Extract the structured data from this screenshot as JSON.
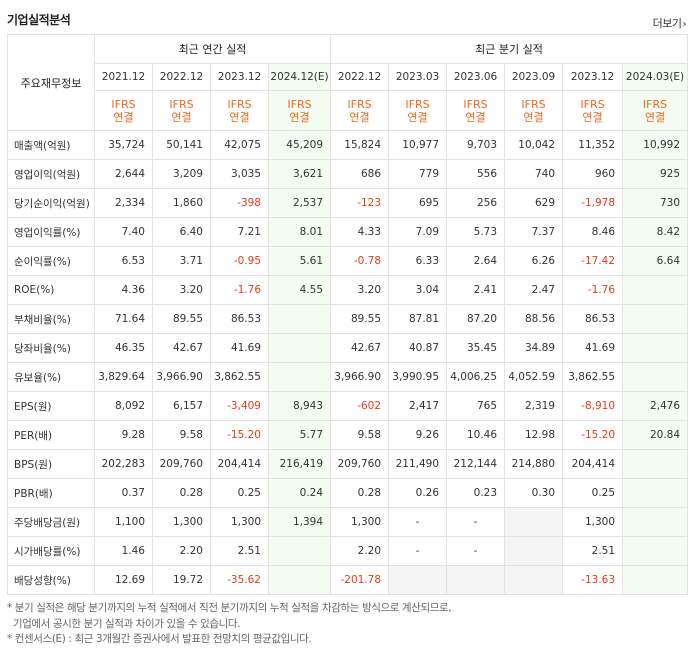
{
  "header": {
    "title": "기업실적분석",
    "more_label": "더보기",
    "more_chevron": "›"
  },
  "table": {
    "label_head": "주요재무정보",
    "group_annual": "최근 연간 실적",
    "group_quarter": "최근 분기 실적",
    "periods": [
      "2021.12",
      "2022.12",
      "2023.12",
      "2024.12(E)",
      "2022.12",
      "2023.03",
      "2023.06",
      "2023.09",
      "2023.12",
      "2024.03(E)"
    ],
    "ifrs_line1": "IFRS",
    "ifrs_line2": "연결",
    "rows": [
      {
        "label": "매출액(억원)",
        "values": [
          "35,724",
          "50,141",
          "42,075",
          "45,209",
          "15,824",
          "10,977",
          "9,703",
          "10,042",
          "11,352",
          "10,992"
        ]
      },
      {
        "label": "영업이익(억원)",
        "values": [
          "2,644",
          "3,209",
          "3,035",
          "3,621",
          "686",
          "779",
          "556",
          "740",
          "960",
          "925"
        ]
      },
      {
        "label": "당기순이익(억원)",
        "values": [
          "2,334",
          "1,860",
          "-398",
          "2,537",
          "-123",
          "695",
          "256",
          "629",
          "-1,978",
          "730"
        ]
      },
      {
        "label": "영업이익률(%)",
        "values": [
          "7.40",
          "6.40",
          "7.21",
          "8.01",
          "4.33",
          "7.09",
          "5.73",
          "7.37",
          "8.46",
          "8.42"
        ]
      },
      {
        "label": "순이익률(%)",
        "values": [
          "6.53",
          "3.71",
          "-0.95",
          "5.61",
          "-0.78",
          "6.33",
          "2.64",
          "6.26",
          "-17.42",
          "6.64"
        ]
      },
      {
        "label": "ROE(%)",
        "values": [
          "4.36",
          "3.20",
          "-1.76",
          "4.55",
          "3.20",
          "3.04",
          "2.41",
          "2.47",
          "-1.76",
          ""
        ]
      },
      {
        "label": "부채비율(%)",
        "values": [
          "71.64",
          "89.55",
          "86.53",
          "",
          "89.55",
          "87.81",
          "87.20",
          "88.56",
          "86.53",
          ""
        ]
      },
      {
        "label": "당좌비율(%)",
        "values": [
          "46.35",
          "42.67",
          "41.69",
          "",
          "42.67",
          "40.87",
          "35.45",
          "34.89",
          "41.69",
          ""
        ]
      },
      {
        "label": "유보율(%)",
        "values": [
          "3,829.64",
          "3,966.90",
          "3,862.55",
          "",
          "3,966.90",
          "3,990.95",
          "4,006.25",
          "4,052.59",
          "3,862.55",
          ""
        ]
      },
      {
        "label": "EPS(원)",
        "values": [
          "8,092",
          "6,157",
          "-3,409",
          "8,943",
          "-602",
          "2,417",
          "765",
          "2,319",
          "-8,910",
          "2,476"
        ]
      },
      {
        "label": "PER(배)",
        "values": [
          "9.28",
          "9.58",
          "-15.20",
          "5.77",
          "9.58",
          "9.26",
          "10.46",
          "12.98",
          "-15.20",
          "20.84"
        ]
      },
      {
        "label": "BPS(원)",
        "values": [
          "202,283",
          "209,760",
          "204,414",
          "216,419",
          "209,760",
          "211,490",
          "212,144",
          "214,880",
          "204,414",
          ""
        ]
      },
      {
        "label": "PBR(배)",
        "values": [
          "0.37",
          "0.28",
          "0.25",
          "0.24",
          "0.28",
          "0.26",
          "0.23",
          "0.30",
          "0.25",
          ""
        ]
      },
      {
        "label": "주당배당금(원)",
        "values": [
          "1,100",
          "1,300",
          "1,300",
          "1,394",
          "1,300",
          "-",
          "-",
          "",
          "1,300",
          ""
        ]
      },
      {
        "label": "시가배당률(%)",
        "values": [
          "1.46",
          "2.20",
          "2.51",
          "",
          "2.20",
          "-",
          "-",
          "",
          "2.51",
          ""
        ]
      },
      {
        "label": "배당성향(%)",
        "values": [
          "12.69",
          "19.72",
          "-35.62",
          "",
          "-201.78",
          "",
          "",
          "",
          "-13.63",
          ""
        ]
      }
    ]
  },
  "notes": [
    "* 분기 실적은 해당 분기까지의 누적 실적에서 직전 분기까지의 누적 실적을 차감하는 방식으로 계산되므로,",
    "  기업에서 공시한 분기 실적과 차이가 있을 수 있습니다.",
    "* 컨센서스(E) : 최근 3개월간 증권사에서 발표한 전망치의 평균값입니다."
  ],
  "colors": {
    "negative": "#e53b1c",
    "ifrs": "#ea6b1c",
    "estimate_bg": "#f4fbf1",
    "blank_bg": "#f5f5f5"
  }
}
